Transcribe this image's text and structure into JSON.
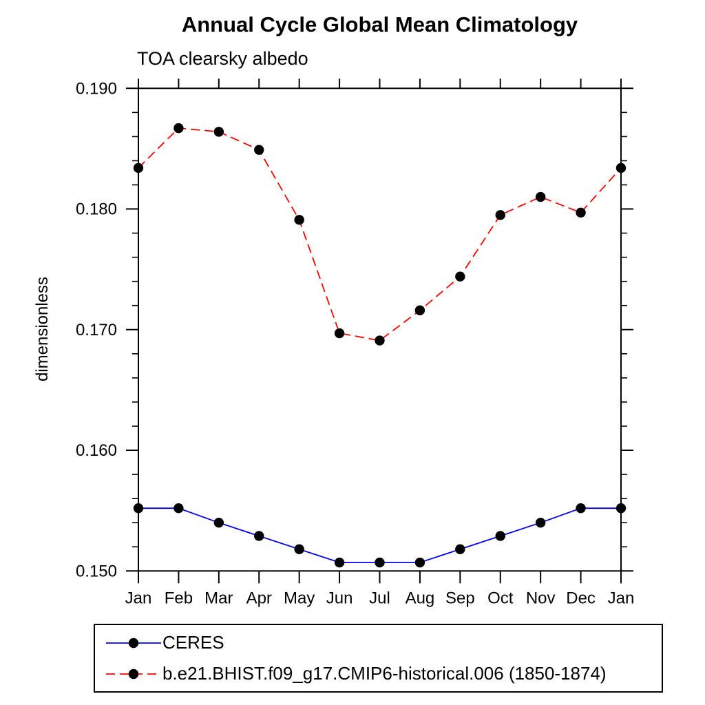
{
  "chart_data": {
    "type": "line",
    "title": "Annual Cycle Global Mean Climatology",
    "subtitle": "TOA clearsky albedo",
    "ylabel": "dimensionless",
    "xlabel": "",
    "categories": [
      "Jan",
      "Feb",
      "Mar",
      "Apr",
      "May",
      "Jun",
      "Jul",
      "Aug",
      "Sep",
      "Oct",
      "Nov",
      "Dec",
      "Jan"
    ],
    "ylim": [
      0.15,
      0.19
    ],
    "ytick_labels": [
      "0.150",
      "0.160",
      "0.170",
      "0.180",
      "0.190"
    ],
    "ytick_major_values": [
      0.15,
      0.16,
      0.17,
      0.18,
      0.19
    ],
    "ytick_minor_step": 0.002,
    "grid": false,
    "legend_position": "bottom-left-box",
    "axis_color": "#000000",
    "marker": {
      "shape": "circle",
      "color": "#000000",
      "radius": 7.2
    },
    "series": [
      {
        "name": "CERES",
        "color": "#0000ee",
        "style": "solid",
        "values": [
          0.1552,
          0.1552,
          0.154,
          0.1529,
          0.1518,
          0.1507,
          0.1507,
          0.1507,
          0.1518,
          0.1529,
          0.154,
          0.1552,
          0.1552
        ]
      },
      {
        "name": "b.e21.BHIST.f09_g17.CMIP6-historical.006 (1850-1874)",
        "color": "#ff0000",
        "style": "dashed",
        "values": [
          0.1834,
          0.1867,
          0.1864,
          0.1849,
          0.1791,
          0.1697,
          0.1691,
          0.1716,
          0.1744,
          0.1795,
          0.181,
          0.1797,
          0.1834
        ]
      }
    ]
  }
}
